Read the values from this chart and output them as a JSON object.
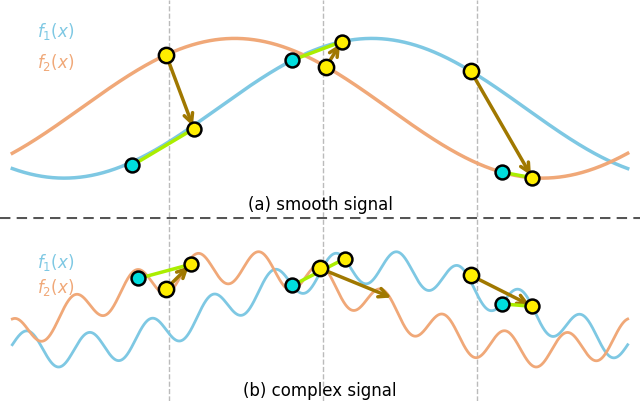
{
  "background_color": "#ffffff",
  "f1_color": "#7ec8e3",
  "f2_color": "#f0a878",
  "vline_color": "#bbbbbb",
  "arrow_color": "#a07800",
  "cyan_dot_color": "#00dddd",
  "yellow_dot_color": "#ffee00",
  "green_line_color": "#aaee00",
  "dashed_sep_color": "#555555",
  "label_f1": "$f_1(x)$",
  "label_f2": "$f_2(x)$",
  "caption_a": "(a) smooth signal",
  "caption_b": "(b) complex signal",
  "vline_positions": [
    0.255,
    0.505,
    0.755
  ],
  "smooth_amp": 1.0,
  "smooth_freq": 1.0,
  "smooth_phase1": -0.5,
  "smooth_phase2": 1.0,
  "complex_low_amp": 0.7,
  "complex_high_amp": 0.28,
  "complex_high_freq": 10.0
}
